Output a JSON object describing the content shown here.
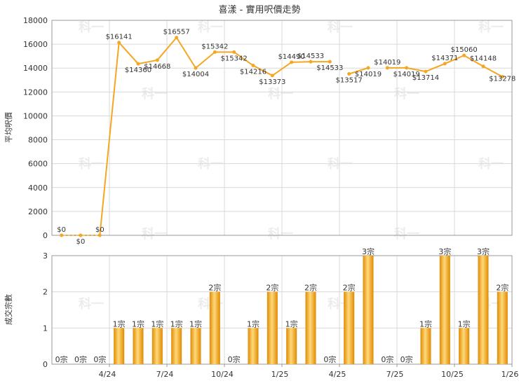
{
  "colors": {
    "line": "#f5a623",
    "bar_dark": "#e08a00",
    "bar_light": "#ffd97a",
    "grid": "#d9d9d9",
    "axis": "#999999",
    "text": "#333333",
    "watermark": "#ececec"
  },
  "watermark_text": "科一",
  "chart_data": [
    {
      "type": "line",
      "title": "喜漾 - 實用呎價走勢",
      "ylabel": "平均呎價",
      "ylim": [
        0,
        18000
      ],
      "yticks": [
        "0",
        "2000",
        "4000",
        "6000",
        "8000",
        "10000",
        "12000",
        "14000",
        "16000",
        "18000"
      ],
      "values": [
        0,
        0,
        0,
        16141,
        14360,
        14668,
        16557,
        14004,
        15342,
        15342,
        14216,
        13373,
        14490,
        14533,
        14533,
        13517,
        14019,
        14019,
        14019,
        13714,
        14371,
        15060,
        14148,
        13278
      ],
      "labels": [
        "$0",
        "$0",
        "$0",
        "$16141",
        "$14360",
        "$14668",
        "$16557",
        "$14004",
        "$15342",
        "$15342",
        "$14216",
        "$13373",
        "$14490",
        "$14533",
        "$14533",
        "$13517",
        "$14019",
        "$14019",
        "$14019",
        "$13714",
        "$14371",
        "$15060",
        "$14148",
        "$13278"
      ],
      "dashed_segments": [
        [
          0,
          1
        ],
        [
          1,
          2
        ]
      ],
      "gaps": [
        [
          14,
          15
        ],
        [
          16,
          17
        ]
      ]
    },
    {
      "type": "bar",
      "ylabel": "成交宗數",
      "ylim": [
        0,
        3
      ],
      "yticks": [
        "0",
        "1",
        "2",
        "3"
      ],
      "values": [
        0,
        0,
        0,
        1,
        1,
        1,
        1,
        1,
        2,
        0,
        1,
        2,
        1,
        2,
        0,
        2,
        3,
        0,
        0,
        1,
        3,
        1,
        3,
        2
      ],
      "labels": [
        "0宗",
        "0宗",
        "0宗",
        "1宗",
        "1宗",
        "1宗",
        "1宗",
        "1宗",
        "2宗",
        "0宗",
        "1宗",
        "2宗",
        "1宗",
        "2宗",
        "0宗",
        "2宗",
        "3宗",
        "0宗",
        "0宗",
        "1宗",
        "3宗",
        "1宗",
        "3宗",
        "2宗"
      ],
      "xticks": [
        {
          "index": 2,
          "label": "4/24"
        },
        {
          "index": 5,
          "label": "7/24"
        },
        {
          "index": 8,
          "label": "10/24"
        },
        {
          "index": 11,
          "label": "1/25"
        },
        {
          "index": 14,
          "label": "4/25"
        },
        {
          "index": 17,
          "label": "7/25"
        },
        {
          "index": 20,
          "label": "10/25"
        },
        {
          "index": 23,
          "label": "1/26"
        }
      ]
    }
  ]
}
